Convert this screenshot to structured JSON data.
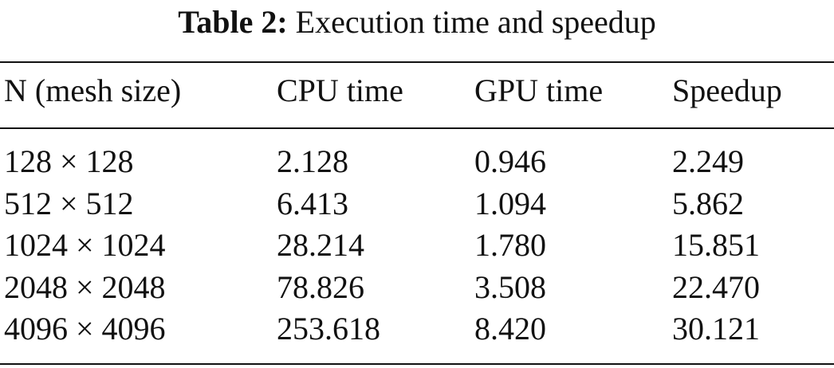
{
  "caption": {
    "label": "Table 2:",
    "text": "Execution time and speedup"
  },
  "table": {
    "header": [
      "N (mesh size)",
      "CPU time",
      "GPU time",
      "Speedup"
    ],
    "rows": [
      [
        "128 × 128",
        "2.128",
        "0.946",
        "2.249"
      ],
      [
        "512 × 512",
        "6.413",
        "1.094",
        "5.862"
      ],
      [
        "1024 × 1024",
        "28.214",
        "1.780",
        "15.851"
      ],
      [
        "2048 × 2048",
        "78.826",
        "3.508",
        "22.470"
      ],
      [
        "4096 × 4096",
        "253.618",
        "8.420",
        "30.121"
      ]
    ]
  }
}
